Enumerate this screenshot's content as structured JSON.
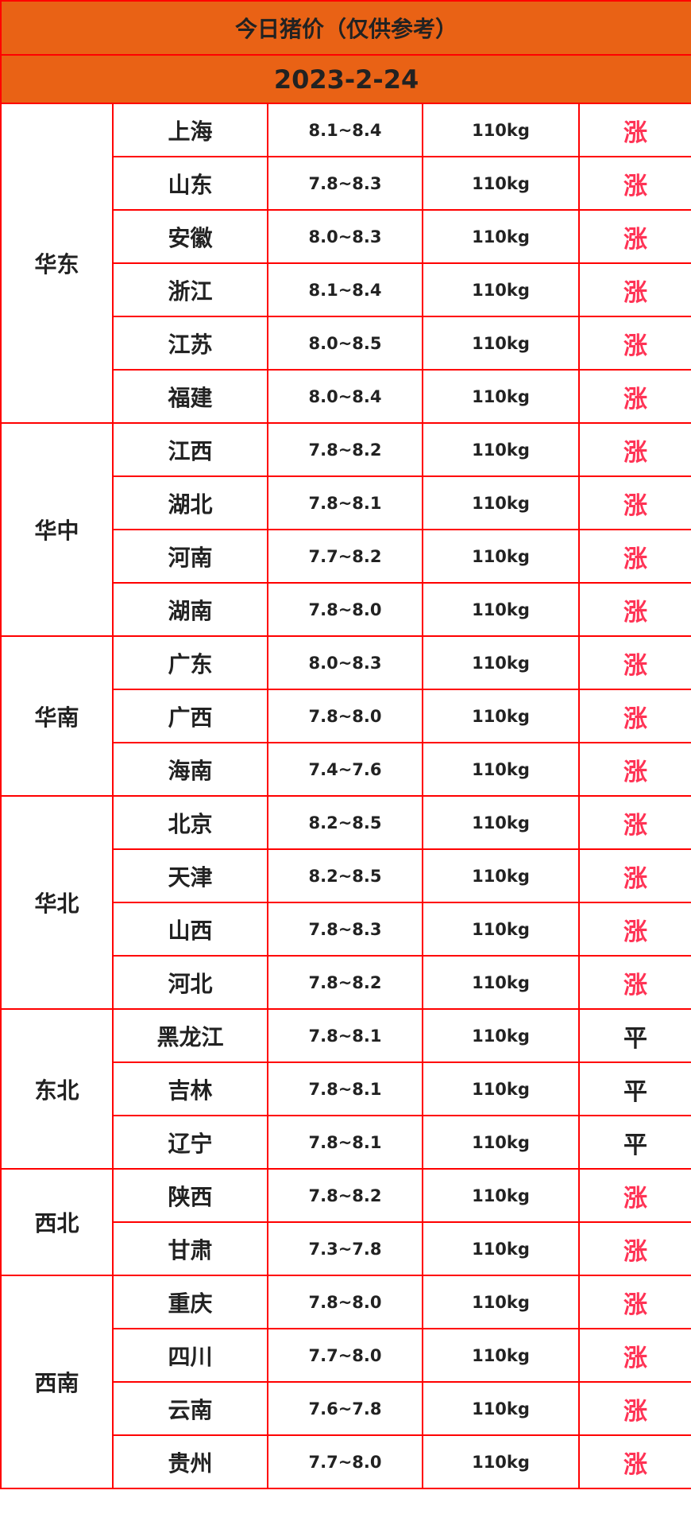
{
  "title": "今日猪价（仅供参考）",
  "date": "2023-2-24",
  "colors": {
    "header_bg": "#e96215",
    "border": "#ff0000",
    "rise": "#ff3355",
    "flat": "#222222"
  },
  "regions": [
    {
      "name": "华东",
      "rows": [
        {
          "province": "上海",
          "price": "8.1~8.4",
          "weight": "110kg",
          "trend": "涨"
        },
        {
          "province": "山东",
          "price": "7.8~8.3",
          "weight": "110kg",
          "trend": "涨"
        },
        {
          "province": "安徽",
          "price": "8.0~8.3",
          "weight": "110kg",
          "trend": "涨"
        },
        {
          "province": "浙江",
          "price": "8.1~8.4",
          "weight": "110kg",
          "trend": "涨"
        },
        {
          "province": "江苏",
          "price": "8.0~8.5",
          "weight": "110kg",
          "trend": "涨"
        },
        {
          "province": "福建",
          "price": "8.0~8.4",
          "weight": "110kg",
          "trend": "涨"
        }
      ]
    },
    {
      "name": "华中",
      "rows": [
        {
          "province": "江西",
          "price": "7.8~8.2",
          "weight": "110kg",
          "trend": "涨"
        },
        {
          "province": "湖北",
          "price": "7.8~8.1",
          "weight": "110kg",
          "trend": "涨"
        },
        {
          "province": "河南",
          "price": "7.7~8.2",
          "weight": "110kg",
          "trend": "涨"
        },
        {
          "province": "湖南",
          "price": "7.8~8.0",
          "weight": "110kg",
          "trend": "涨"
        }
      ]
    },
    {
      "name": "华南",
      "rows": [
        {
          "province": "广东",
          "price": "8.0~8.3",
          "weight": "110kg",
          "trend": "涨"
        },
        {
          "province": "广西",
          "price": "7.8~8.0",
          "weight": "110kg",
          "trend": "涨"
        },
        {
          "province": "海南",
          "price": "7.4~7.6",
          "weight": "110kg",
          "trend": "涨"
        }
      ]
    },
    {
      "name": "华北",
      "rows": [
        {
          "province": "北京",
          "price": "8.2~8.5",
          "weight": "110kg",
          "trend": "涨"
        },
        {
          "province": "天津",
          "price": "8.2~8.5",
          "weight": "110kg",
          "trend": "涨"
        },
        {
          "province": "山西",
          "price": "7.8~8.3",
          "weight": "110kg",
          "trend": "涨"
        },
        {
          "province": "河北",
          "price": "7.8~8.2",
          "weight": "110kg",
          "trend": "涨"
        }
      ]
    },
    {
      "name": "东北",
      "rows": [
        {
          "province": "黑龙江",
          "price": "7.8~8.1",
          "weight": "110kg",
          "trend": "平"
        },
        {
          "province": "吉林",
          "price": "7.8~8.1",
          "weight": "110kg",
          "trend": "平"
        },
        {
          "province": "辽宁",
          "price": "7.8~8.1",
          "weight": "110kg",
          "trend": "平"
        }
      ]
    },
    {
      "name": "西北",
      "rows": [
        {
          "province": "陕西",
          "price": "7.8~8.2",
          "weight": "110kg",
          "trend": "涨"
        },
        {
          "province": "甘肃",
          "price": "7.3~7.8",
          "weight": "110kg",
          "trend": "涨"
        }
      ]
    },
    {
      "name": "西南",
      "rows": [
        {
          "province": "重庆",
          "price": "7.8~8.0",
          "weight": "110kg",
          "trend": "涨"
        },
        {
          "province": "四川",
          "price": "7.7~8.0",
          "weight": "110kg",
          "trend": "涨"
        },
        {
          "province": "云南",
          "price": "7.6~7.8",
          "weight": "110kg",
          "trend": "涨"
        },
        {
          "province": "贵州",
          "price": "7.7~8.0",
          "weight": "110kg",
          "trend": "涨"
        }
      ]
    }
  ]
}
